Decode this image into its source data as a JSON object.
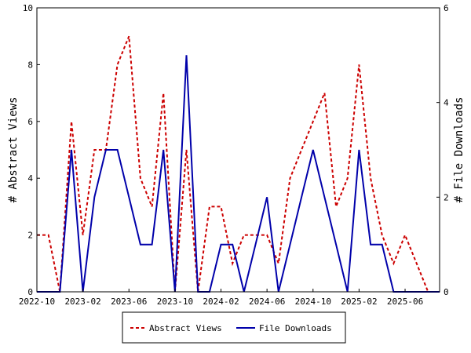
{
  "chart_data": {
    "type": "line",
    "x": [
      "2022-10",
      "2022-11",
      "2022-12",
      "2023-01",
      "2023-02",
      "2023-03",
      "2023-04",
      "2023-05",
      "2023-06",
      "2023-07",
      "2023-08",
      "2023-09",
      "2023-10",
      "2023-11",
      "2023-12",
      "2024-01",
      "2024-02",
      "2024-03",
      "2024-04",
      "2024-05",
      "2024-06",
      "2024-07",
      "2024-08",
      "2024-09",
      "2024-10",
      "2024-11",
      "2024-12",
      "2025-01",
      "2025-02",
      "2025-03",
      "2025-04",
      "2025-05",
      "2025-06",
      "2025-07",
      "2025-08",
      "2025-09"
    ],
    "x_tick_labels": [
      "2022-10",
      "2023-02",
      "2023-06",
      "2023-10",
      "2024-02",
      "2024-06",
      "2024-10",
      "2025-02",
      "2025-06"
    ],
    "series": [
      {
        "name": "Abstract Views",
        "axis": "left",
        "color": "#cc0000",
        "line_style": "dashed",
        "values": [
          2,
          2,
          0,
          6,
          2,
          5,
          5,
          8,
          9,
          4,
          3,
          7,
          0,
          5,
          0,
          3,
          3,
          1,
          2,
          2,
          2,
          1,
          4,
          5,
          6,
          7,
          3,
          4,
          8,
          4,
          2,
          1,
          2,
          1,
          0,
          0
        ]
      },
      {
        "name": "File Downloads",
        "axis": "right",
        "color": "#0000aa",
        "line_style": "solid",
        "values": [
          0,
          0,
          0,
          3,
          0,
          2,
          3,
          3,
          2,
          1,
          1,
          3,
          0,
          5,
          0,
          0,
          1,
          1,
          0,
          1,
          2,
          0,
          1,
          2,
          3,
          2,
          1,
          0,
          3,
          1,
          1,
          0,
          0,
          0,
          0,
          0
        ]
      }
    ],
    "ylabel_left": "# Abstract Views",
    "ylabel_right": "# File Downloads",
    "ylim_left": [
      0,
      10
    ],
    "ylim_right": [
      0,
      6
    ],
    "yticks_left": [
      "0",
      "2",
      "4",
      "6",
      "8",
      "10"
    ],
    "yticks_right": [
      "0",
      "2",
      "4",
      "6"
    ],
    "grid": false,
    "legend_position": "bottom-center"
  }
}
